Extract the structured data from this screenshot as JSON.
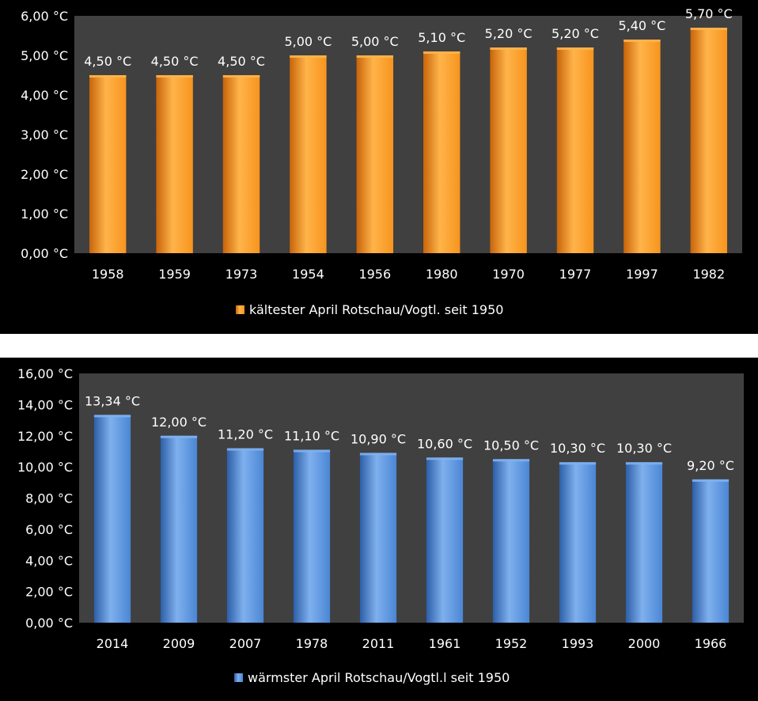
{
  "colors": {
    "background": "#000000",
    "plot_area": "#404040",
    "orange_bar": "#f7941d",
    "blue_bar": "#4a86d4",
    "text": "#ffffff"
  },
  "chart_data": [
    {
      "type": "bar",
      "categories": [
        "1958",
        "1959",
        "1973",
        "1954",
        "1956",
        "1980",
        "1970",
        "1977",
        "1997",
        "1982"
      ],
      "series": [
        {
          "name": "kältester April  Rotschau/Vogtl. seit 1950",
          "values": [
            4.5,
            4.5,
            4.5,
            5.0,
            5.0,
            5.1,
            5.2,
            5.2,
            5.4,
            5.7
          ],
          "data_labels": [
            "4,50 °C",
            "4,50 °C",
            "4,50 °C",
            "5,00 °C",
            "5,00 °C",
            "5,10 °C",
            "5,20 °C",
            "5,20 °C",
            "5,40 °C",
            "5,70 °C"
          ]
        }
      ],
      "ylim": [
        0,
        6
      ],
      "yticks": [
        "0,00 °C",
        "1,00 °C",
        "2,00 °C",
        "3,00 °C",
        "4,00 °C",
        "5,00 °C",
        "6,00 °C"
      ],
      "legend_position": "bottom",
      "grid": false
    },
    {
      "type": "bar",
      "categories": [
        "2014",
        "2009",
        "2007",
        "1978",
        "2011",
        "1961",
        "1952",
        "1993",
        "2000",
        "1966"
      ],
      "series": [
        {
          "name": "wärmster April Rotschau/Vogtl.l seit 1950",
          "values": [
            13.34,
            12.0,
            11.2,
            11.1,
            10.9,
            10.6,
            10.5,
            10.3,
            10.3,
            9.2
          ],
          "data_labels": [
            "13,34 °C",
            "12,00 °C",
            "11,20 °C",
            "11,10 °C",
            "10,90 °C",
            "10,60 °C",
            "10,50 °C",
            "10,30 °C",
            "10,30 °C",
            "9,20 °C"
          ]
        }
      ],
      "ylim": [
        0,
        16
      ],
      "yticks": [
        "0,00 °C",
        "2,00 °C",
        "4,00 °C",
        "6,00 °C",
        "8,00 °C",
        "10,00 °C",
        "12,00 °C",
        "14,00 °C",
        "16,00 °C"
      ],
      "legend_position": "bottom",
      "grid": false
    }
  ]
}
